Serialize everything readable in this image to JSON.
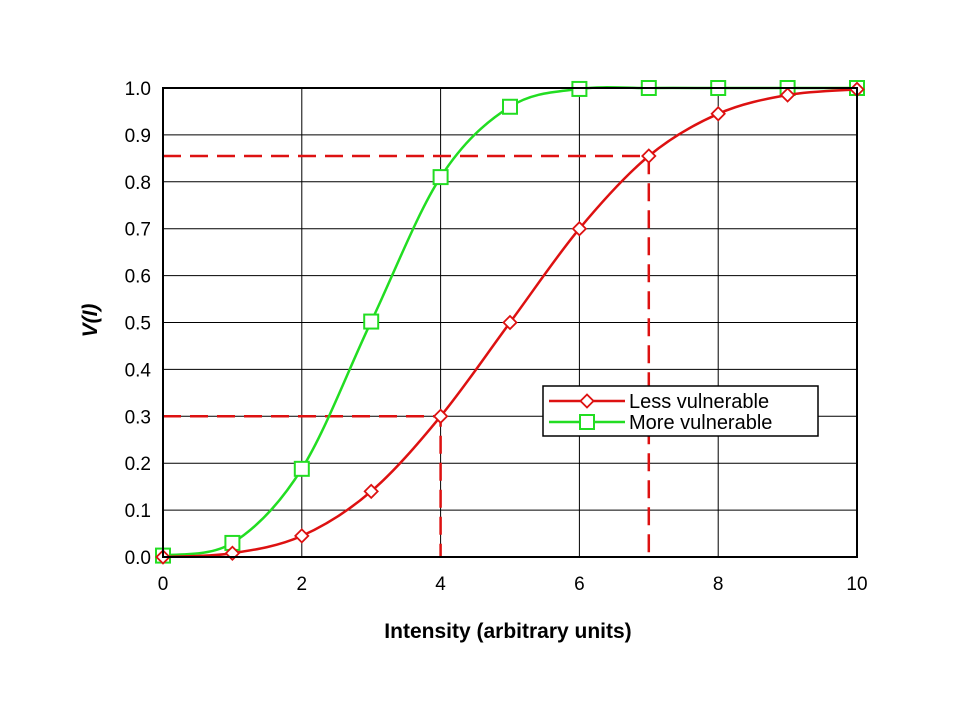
{
  "chart_data": {
    "type": "line",
    "title": "",
    "xlabel": "Intensity (arbitrary units)",
    "ylabel": "V(I)",
    "xlim": [
      0,
      10
    ],
    "ylim": [
      0,
      1
    ],
    "x_ticks": [
      0,
      2,
      4,
      6,
      8,
      10
    ],
    "x_tick_labels": [
      "0",
      "2",
      "4",
      "6",
      "8",
      "10"
    ],
    "y_ticks": [
      0,
      0.1,
      0.2,
      0.3,
      0.4,
      0.5,
      0.6,
      0.7,
      0.8,
      0.9,
      1.0
    ],
    "y_tick_labels": [
      "0.0",
      "0.1",
      "0.2",
      "0.3",
      "0.4",
      "0.5",
      "0.6",
      "0.7",
      "0.8",
      "0.9",
      "1.0"
    ],
    "grid": true,
    "legend_position": "right, lower middle",
    "series": [
      {
        "name": "Less vulnerable",
        "color": "#dd1111",
        "marker": "diamond",
        "x": [
          0,
          1,
          2,
          3,
          4,
          5,
          6,
          7,
          8,
          9,
          10
        ],
        "y": [
          0.0,
          0.008,
          0.045,
          0.14,
          0.3,
          0.5,
          0.7,
          0.855,
          0.945,
          0.985,
          0.997
        ]
      },
      {
        "name": "More vulnerable",
        "color": "#22dd22",
        "marker": "square",
        "x": [
          0,
          1,
          2,
          3,
          4,
          5,
          6,
          7,
          8,
          9,
          10
        ],
        "y": [
          0.003,
          0.03,
          0.188,
          0.502,
          0.81,
          0.96,
          0.998,
          1.0,
          1.0,
          1.0,
          1.0
        ]
      }
    ],
    "reference_lines": [
      {
        "color": "#dd1111",
        "style": "dashed",
        "points": [
          [
            0,
            0.855
          ],
          [
            7,
            0.855
          ],
          [
            7,
            0
          ]
        ]
      },
      {
        "color": "#dd1111",
        "style": "dashed",
        "points": [
          [
            0,
            0.3
          ],
          [
            4,
            0.3
          ],
          [
            4,
            0
          ]
        ]
      }
    ]
  }
}
